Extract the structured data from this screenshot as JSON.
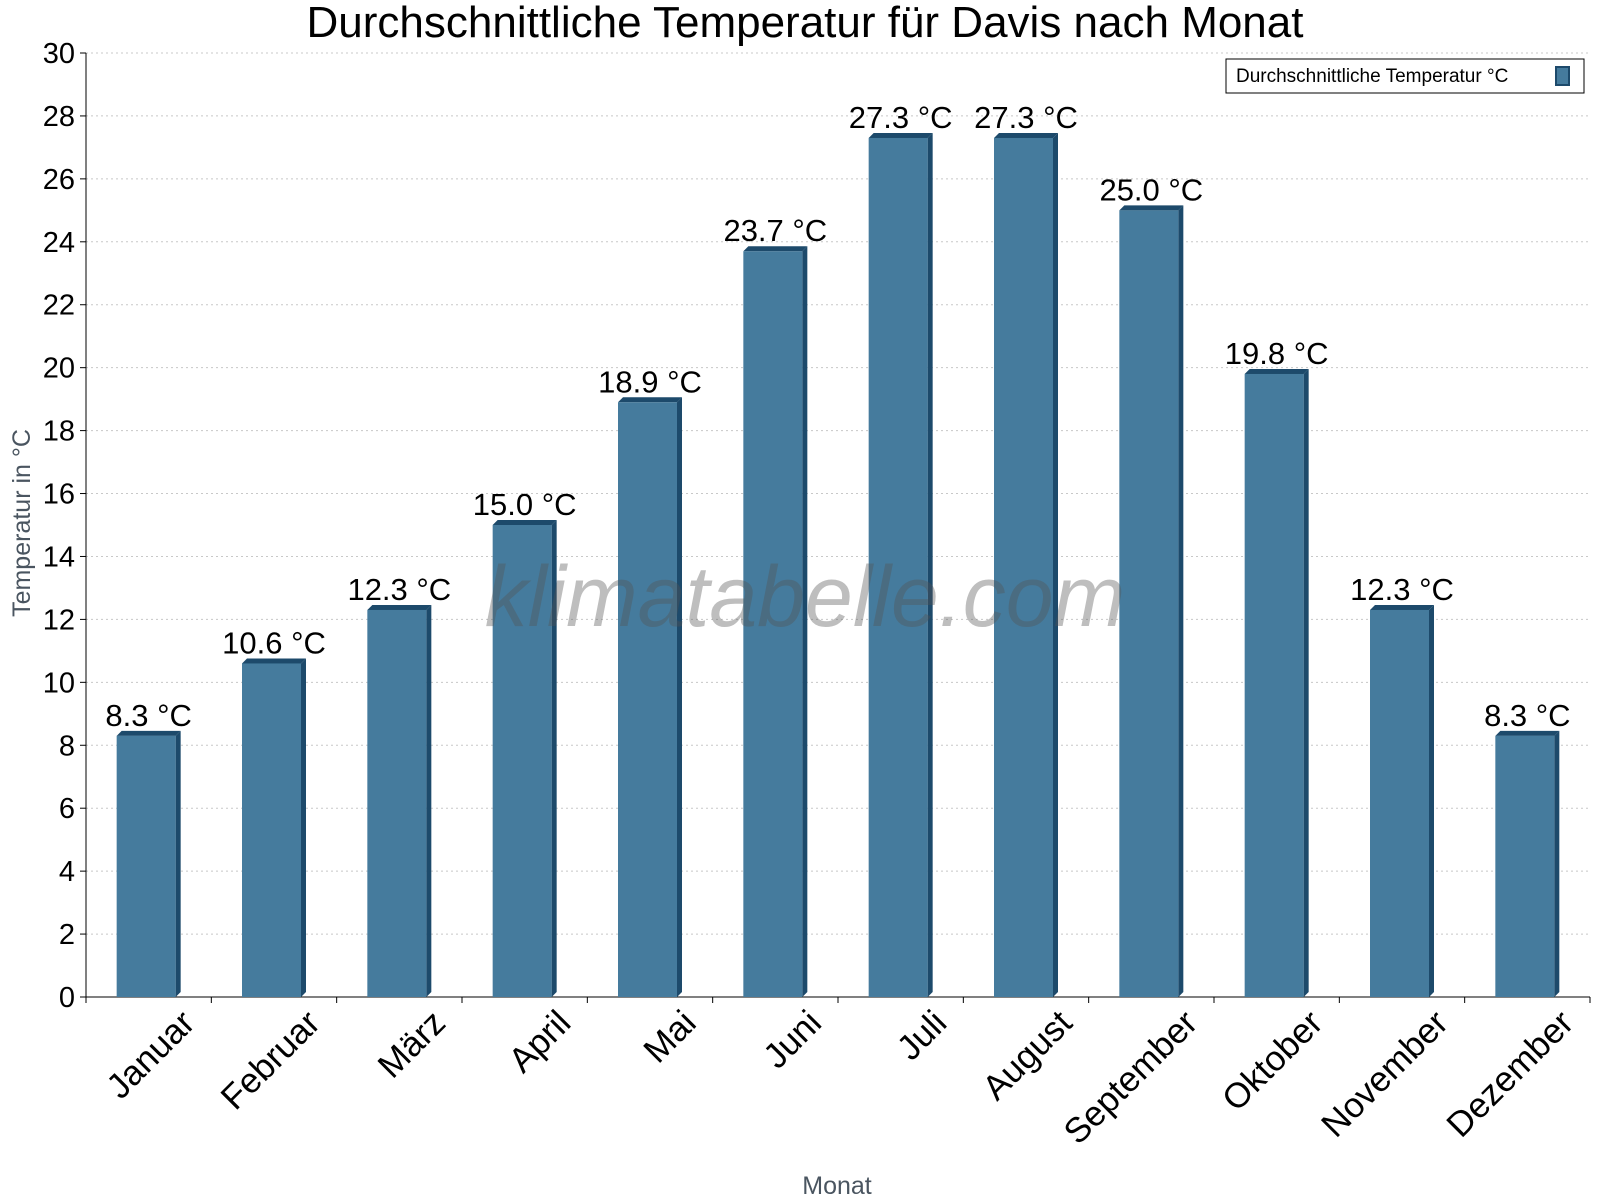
{
  "chart_data": {
    "type": "bar",
    "title": "Durchschnittliche Temperatur für Davis nach Monat",
    "xlabel": "Monat",
    "ylabel": "Temperatur in °C",
    "categories": [
      "Januar",
      "Februar",
      "März",
      "April",
      "Mai",
      "Juni",
      "Juli",
      "August",
      "September",
      "Oktober",
      "November",
      "Dezember"
    ],
    "series": [
      {
        "name": "Durchschnittliche Temperatur °C",
        "values": [
          8.3,
          10.6,
          12.3,
          15.0,
          18.9,
          23.7,
          27.3,
          27.3,
          25.0,
          19.8,
          12.3,
          8.3
        ],
        "data_labels": [
          "8.3 °C",
          "10.6 °C",
          "12.3 °C",
          "15.0 °C",
          "18.9 °C",
          "23.7 °C",
          "27.3 °C",
          "27.3 °C",
          "25.0 °C",
          "19.8 °C",
          "12.3 °C",
          "8.3 °C"
        ]
      }
    ],
    "ylim": [
      0,
      30
    ],
    "yticks": [
      0,
      2,
      4,
      6,
      8,
      10,
      12,
      14,
      16,
      18,
      20,
      22,
      24,
      26,
      28,
      30
    ],
    "grid": true,
    "legend_position": "top-right",
    "watermark": "klimatabelle.com",
    "colors": {
      "bar": "#457b9d",
      "bar_edge": "#1d4a6b",
      "grid": "#c8c8c8"
    }
  }
}
